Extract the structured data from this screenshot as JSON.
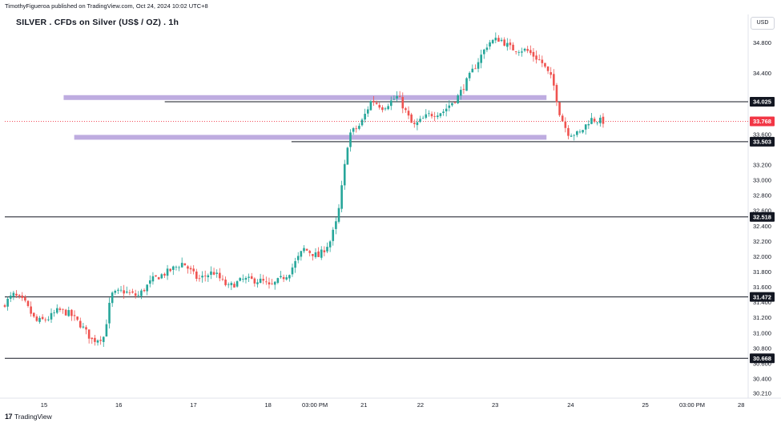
{
  "header": {
    "publisher": "TimothyFigueroa published on TradingView.com, Oct 24, 2024 10:02 UTC+8",
    "title": "SILVER . CFDs on Silver (US$ / OZ) . 1h",
    "currency": "USD"
  },
  "footer": {
    "brand": "TradingView"
  },
  "colors": {
    "up": "#26a69a",
    "down": "#ef5350",
    "zone": "#b39ddb",
    "line": "#131722",
    "last": "#f23645"
  },
  "chart_data": {
    "type": "candlestick",
    "title": "SILVER . CFDs on Silver (US$ / OZ) . 1h",
    "ylim": [
      30.21,
      35.0
    ],
    "y_ticks": [
      "34.800",
      "34.400",
      "33.600",
      "33.200",
      "33.000",
      "32.800",
      "32.600",
      "32.400",
      "32.200",
      "32.000",
      "31.800",
      "31.600",
      "31.400",
      "31.200",
      "31.000",
      "30.800",
      "30.600",
      "30.400",
      "30.210"
    ],
    "x_ticks": [
      {
        "label": "15",
        "t": 0.52
      },
      {
        "label": "16",
        "t": 1.51
      },
      {
        "label": "17",
        "t": 2.5
      },
      {
        "label": "18",
        "t": 3.49
      },
      {
        "label": "03:00 PM",
        "t": 4.11
      },
      {
        "label": "21",
        "t": 4.76
      },
      {
        "label": "22",
        "t": 5.51
      },
      {
        "label": "23",
        "t": 6.5
      },
      {
        "label": "24",
        "t": 7.5
      },
      {
        "label": "25",
        "t": 8.49
      },
      {
        "label": "03:00 PM",
        "t": 9.11
      },
      {
        "label": "28",
        "t": 9.76
      }
    ],
    "x_range": [
      0,
      9.8
    ],
    "last_price": "33.768",
    "horizontal_lines": [
      {
        "value": 34.025,
        "label": "34.025",
        "t_start": 2.12
      },
      {
        "value": 33.503,
        "label": "33.503",
        "t_start": 3.8
      },
      {
        "value": 32.518,
        "label": "32.518",
        "t_start": 0
      },
      {
        "value": 31.472,
        "label": "31.472",
        "t_start": 0
      },
      {
        "value": 30.668,
        "label": "30.668",
        "t_start": 0
      }
    ],
    "zones": [
      {
        "value": 34.08,
        "t_start": 0.78,
        "t_end": 7.18
      },
      {
        "value": 33.56,
        "t_start": 0.92,
        "t_end": 7.18
      }
    ],
    "path": [
      {
        "t": 0.0,
        "p": 31.35
      },
      {
        "t": 0.15,
        "p": 31.5
      },
      {
        "t": 0.3,
        "p": 31.4
      },
      {
        "t": 0.45,
        "p": 31.15
      },
      {
        "t": 0.6,
        "p": 31.18
      },
      {
        "t": 0.75,
        "p": 31.3
      },
      {
        "t": 0.9,
        "p": 31.25
      },
      {
        "t": 1.05,
        "p": 31.1
      },
      {
        "t": 1.2,
        "p": 30.9
      },
      {
        "t": 1.35,
        "p": 30.95
      },
      {
        "t": 1.45,
        "p": 31.5
      },
      {
        "t": 1.6,
        "p": 31.55
      },
      {
        "t": 1.8,
        "p": 31.48
      },
      {
        "t": 2.0,
        "p": 31.7
      },
      {
        "t": 2.2,
        "p": 31.8
      },
      {
        "t": 2.4,
        "p": 31.92
      },
      {
        "t": 2.6,
        "p": 31.7
      },
      {
        "t": 2.8,
        "p": 31.8
      },
      {
        "t": 3.0,
        "p": 31.6
      },
      {
        "t": 3.2,
        "p": 31.7
      },
      {
        "t": 3.45,
        "p": 31.68
      },
      {
        "t": 3.55,
        "p": 31.6
      },
      {
        "t": 3.8,
        "p": 31.78
      },
      {
        "t": 4.0,
        "p": 32.1
      },
      {
        "t": 4.2,
        "p": 32.0
      },
      {
        "t": 4.35,
        "p": 32.2
      },
      {
        "t": 4.45,
        "p": 32.5
      },
      {
        "t": 4.6,
        "p": 33.6
      },
      {
        "t": 4.75,
        "p": 33.72
      },
      {
        "t": 4.9,
        "p": 34.05
      },
      {
        "t": 5.05,
        "p": 33.95
      },
      {
        "t": 5.25,
        "p": 34.1
      },
      {
        "t": 5.45,
        "p": 33.7
      },
      {
        "t": 5.65,
        "p": 33.85
      },
      {
        "t": 5.85,
        "p": 33.9
      },
      {
        "t": 6.05,
        "p": 34.1
      },
      {
        "t": 6.25,
        "p": 34.45
      },
      {
        "t": 6.45,
        "p": 34.8
      },
      {
        "t": 6.6,
        "p": 34.85
      },
      {
        "t": 6.75,
        "p": 34.72
      },
      {
        "t": 6.95,
        "p": 34.7
      },
      {
        "t": 7.15,
        "p": 34.55
      },
      {
        "t": 7.3,
        "p": 34.3
      },
      {
        "t": 7.4,
        "p": 33.85
      },
      {
        "t": 7.5,
        "p": 33.62
      },
      {
        "t": 7.65,
        "p": 33.6
      },
      {
        "t": 7.8,
        "p": 33.8
      },
      {
        "t": 7.95,
        "p": 33.77
      }
    ]
  }
}
